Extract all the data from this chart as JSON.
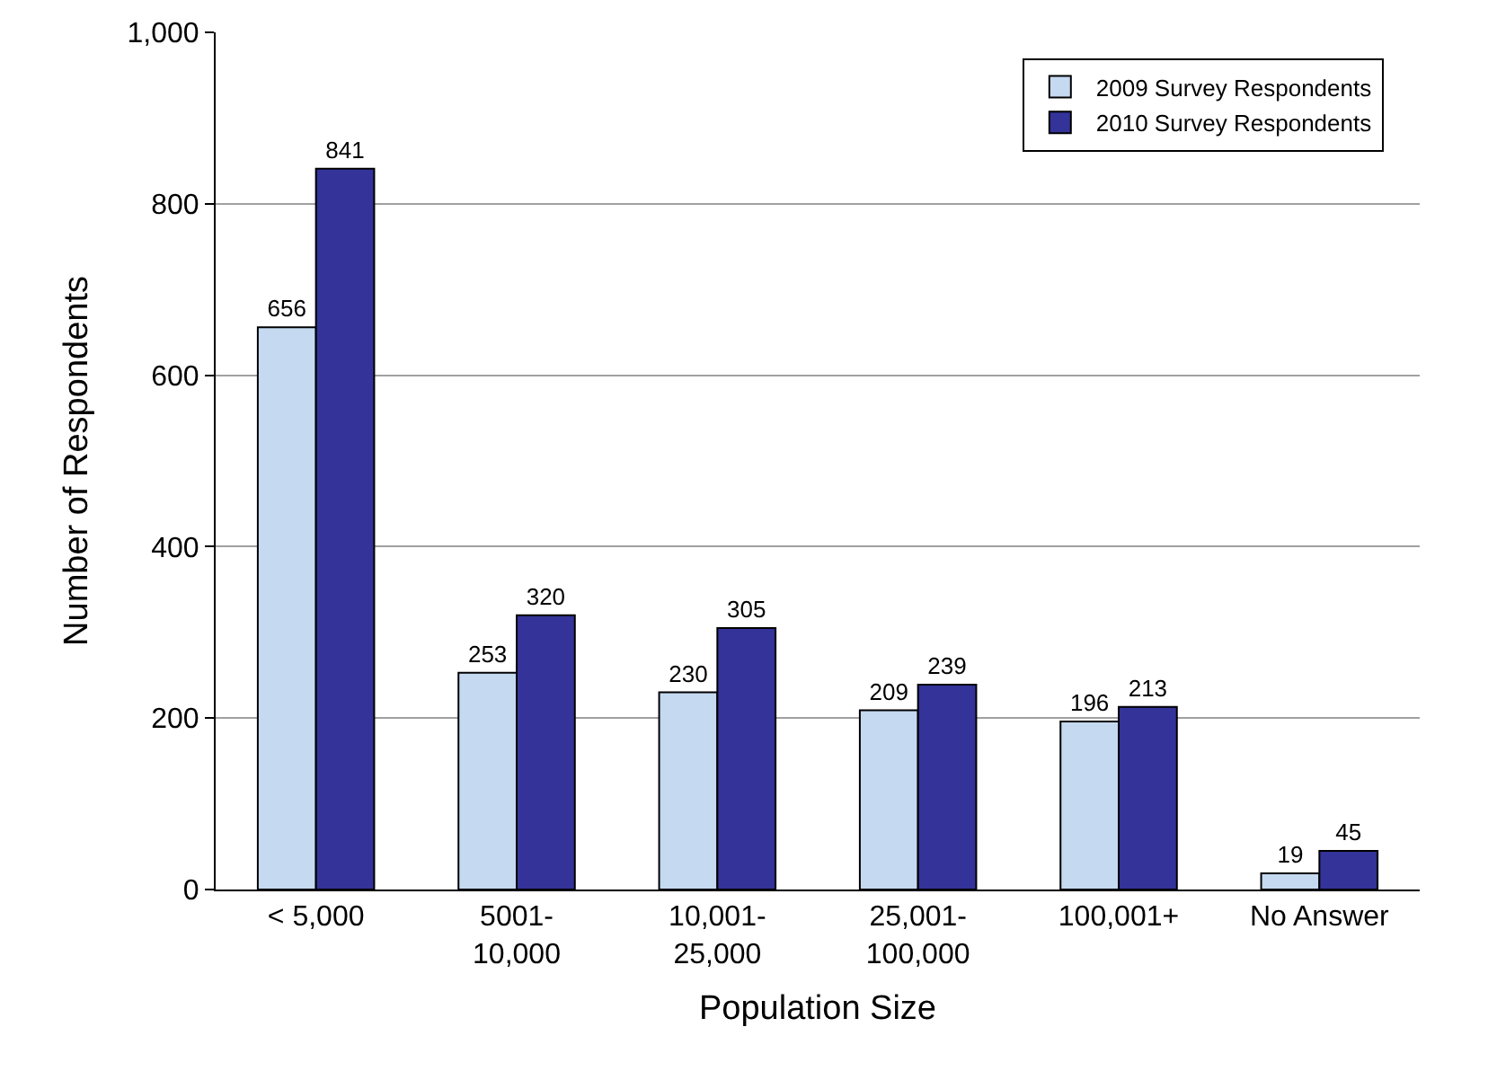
{
  "chart_data": {
    "type": "bar",
    "xlabel": "Population Size",
    "ylabel": "Number of Respondents",
    "categories": [
      "< 5,000",
      "5001-10,000",
      "10,001-25,000",
      "25,001-100,000",
      "100,001+",
      "No Answer"
    ],
    "series": [
      {
        "name": "2009 Survey Respondents",
        "color": "#c5d9f1",
        "values": [
          656,
          253,
          230,
          209,
          196,
          19
        ]
      },
      {
        "name": "2010 Survey Respondents",
        "color": "#333399",
        "values": [
          841,
          320,
          305,
          239,
          213,
          45
        ]
      }
    ],
    "ylim": [
      0,
      1000
    ],
    "yticks": [
      0,
      200,
      400,
      600,
      800,
      {
        "value": 1000,
        "label": "1,000"
      }
    ],
    "grid": "y",
    "legend": "top right",
    "data_labels": true
  }
}
